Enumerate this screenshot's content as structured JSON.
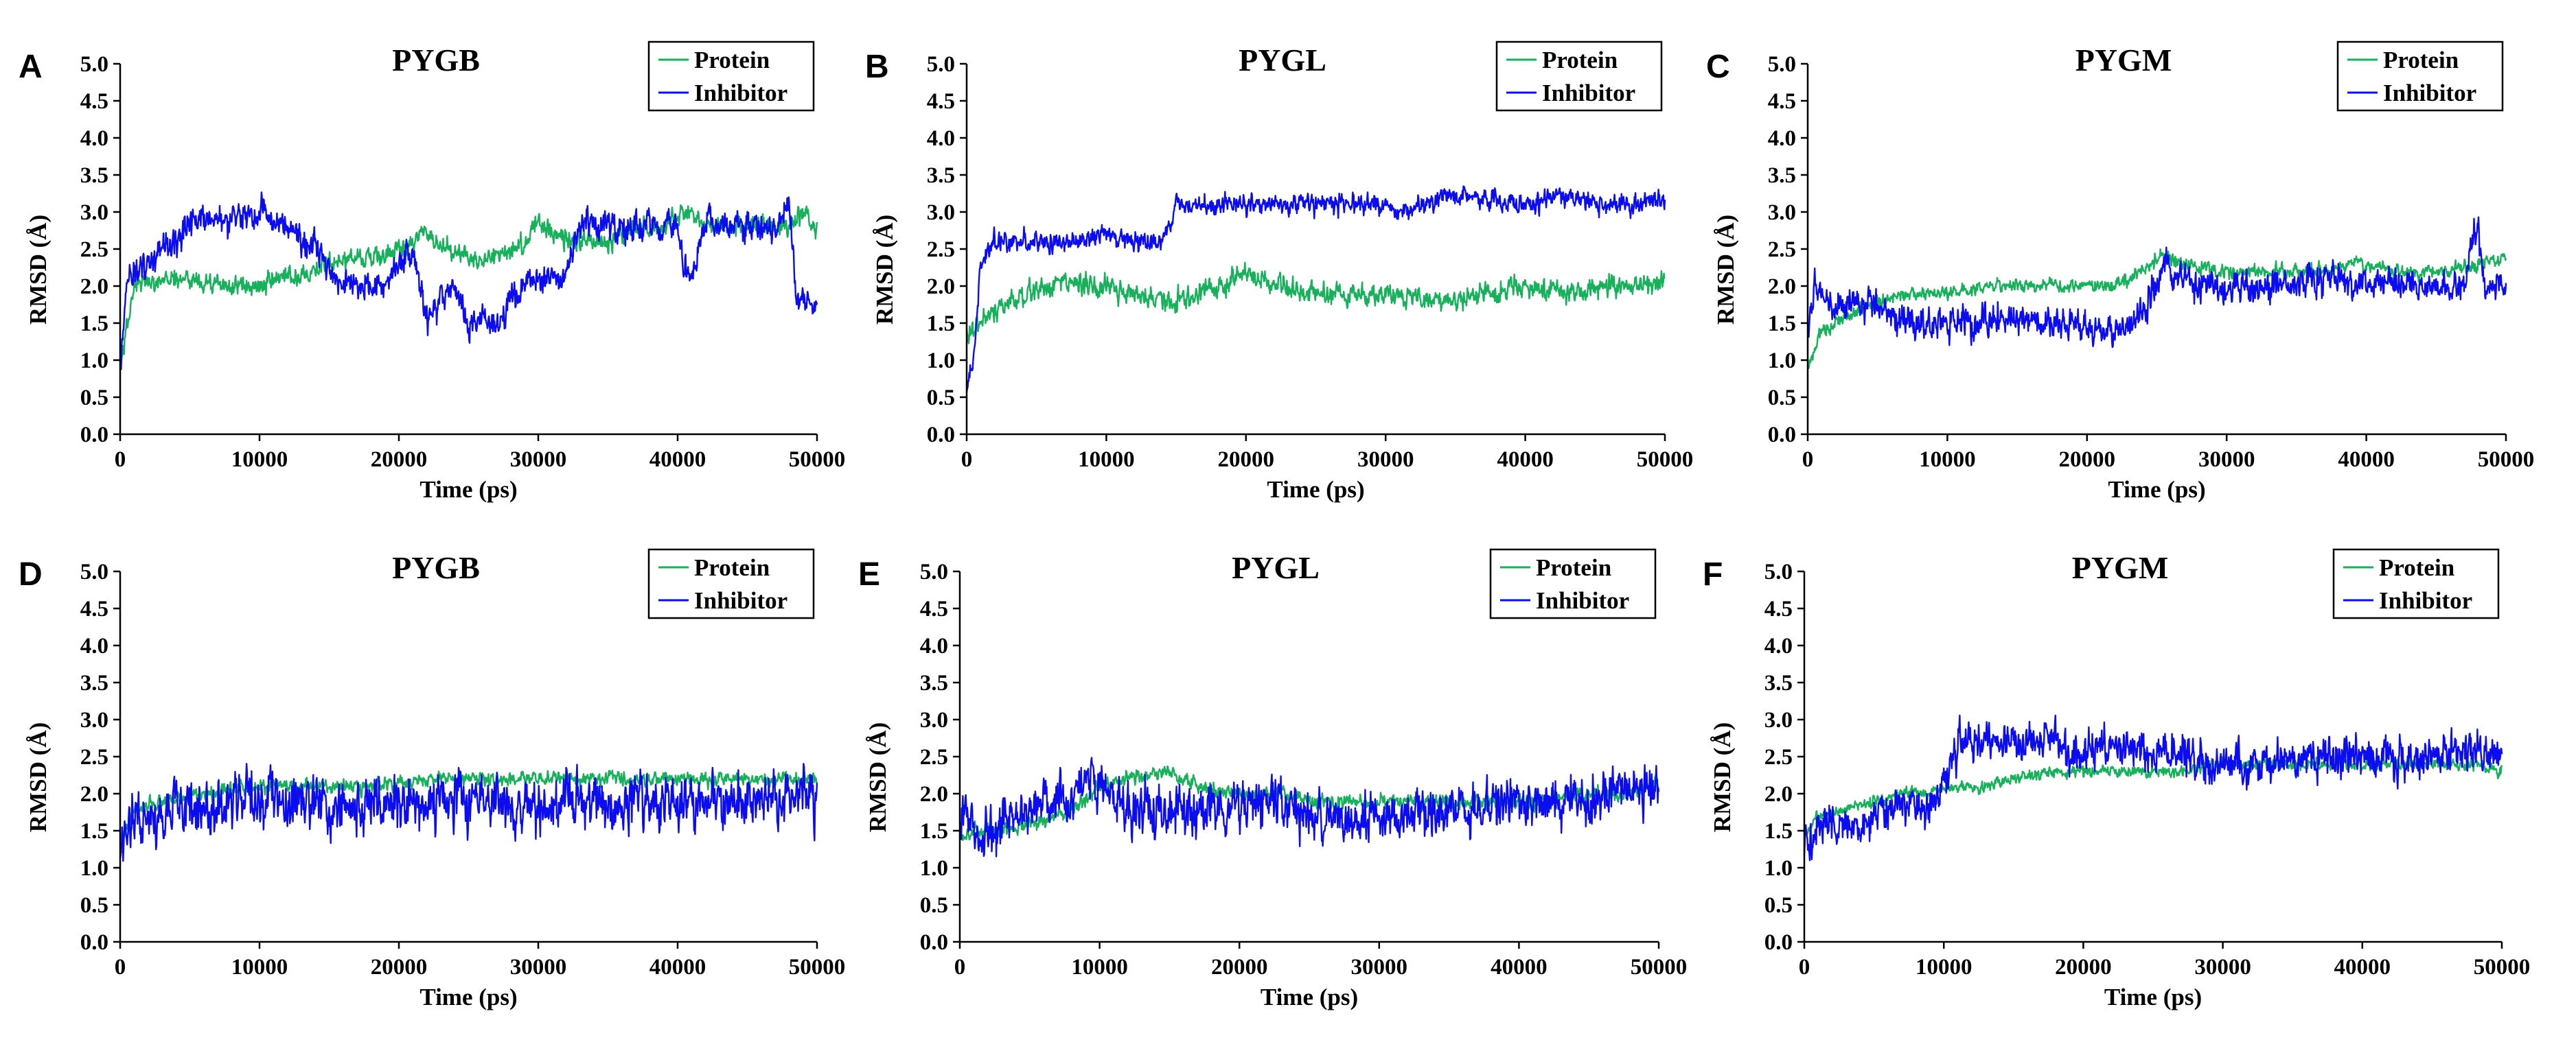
{
  "figure": {
    "colors": {
      "protein": "#19b05c",
      "inhibitor": "#0c0cf0",
      "axis": "#000000"
    }
  },
  "chart_data": [
    {
      "panel": "A",
      "type": "line",
      "title": "PYGB",
      "xlabel": "Time (ps)",
      "ylabel": "RMSD (Å)",
      "xlim": [
        0,
        50000
      ],
      "ylim": [
        0,
        5
      ],
      "xticks": [
        "0",
        "10000",
        "20000",
        "30000",
        "40000",
        "50000"
      ],
      "yticks": [
        "0.0",
        "0.5",
        "1.0",
        "1.5",
        "2.0",
        "2.5",
        "3.0",
        "3.5",
        "4.0",
        "4.5",
        "5.0"
      ],
      "grid": false,
      "legend_position": "top-right",
      "series": [
        {
          "name": "Protein",
          "color": "#19b05c",
          "noise": 0.12,
          "x": [
            0,
            1000,
            3000,
            5000,
            7000,
            8000,
            10000,
            12000,
            15000,
            17000,
            19000,
            21000,
            22000,
            23000,
            25000,
            27000,
            29000,
            30000,
            31000,
            32000,
            33000,
            35000,
            37000,
            39000,
            40000,
            41000,
            42000,
            44000,
            46000,
            48000,
            49000,
            50000
          ],
          "values": [
            0.9,
            2.0,
            2.1,
            2.1,
            2.0,
            2.0,
            2.0,
            2.1,
            2.3,
            2.4,
            2.4,
            2.6,
            2.8,
            2.5,
            2.4,
            2.4,
            2.6,
            2.9,
            2.7,
            2.6,
            2.6,
            2.6,
            2.8,
            2.8,
            2.9,
            3.0,
            2.8,
            2.8,
            2.8,
            2.8,
            3.0,
            2.8
          ]
        },
        {
          "name": "Inhibitor",
          "color": "#0c0cf0",
          "noise": 0.18,
          "x": [
            0,
            500,
            1000,
            2000,
            3000,
            4000,
            5000,
            6000,
            8000,
            10000,
            12000,
            13000,
            14000,
            15000,
            16000,
            17000,
            18000,
            19000,
            20000,
            21000,
            21500,
            22000,
            23000,
            24000,
            25000,
            26000,
            27000,
            28000,
            29000,
            30000,
            31000,
            32000,
            33000,
            34000,
            36000,
            38000,
            39000,
            40000,
            40500,
            41000,
            42000,
            43000,
            44000,
            46000,
            47000,
            48000,
            48500,
            49000,
            50000
          ],
          "values": [
            0.8,
            2.1,
            2.2,
            2.3,
            2.5,
            2.6,
            2.8,
            2.9,
            2.9,
            3.0,
            2.8,
            2.6,
            2.5,
            2.2,
            2.0,
            2.0,
            2.0,
            2.0,
            2.3,
            2.5,
            2.0,
            1.5,
            1.8,
            2.0,
            1.5,
            1.5,
            1.5,
            1.8,
            2.1,
            2.0,
            2.1,
            2.1,
            2.9,
            2.8,
            2.8,
            2.8,
            2.8,
            2.9,
            2.2,
            2.1,
            2.9,
            2.8,
            2.8,
            2.8,
            2.8,
            3.2,
            1.8,
            1.8,
            1.8
          ]
        }
      ]
    },
    {
      "panel": "B",
      "type": "line",
      "title": "PYGL",
      "xlabel": "Time (ps)",
      "ylabel": "RMSD (Å)",
      "xlim": [
        0,
        50000
      ],
      "ylim": [
        0,
        5
      ],
      "xticks": [
        "0",
        "10000",
        "20000",
        "30000",
        "40000",
        "50000"
      ],
      "yticks": [
        "0.0",
        "0.5",
        "1.0",
        "1.5",
        "2.0",
        "2.5",
        "3.0",
        "3.5",
        "4.0",
        "4.5",
        "5.0"
      ],
      "grid": false,
      "legend_position": "top-right",
      "series": [
        {
          "name": "Protein",
          "color": "#19b05c",
          "noise": 0.13,
          "x": [
            0,
            1000,
            3000,
            5000,
            7000,
            9000,
            12000,
            15000,
            18000,
            20000,
            22000,
            25000,
            28000,
            31000,
            34000,
            37000,
            40000,
            43000,
            46000,
            48000,
            50000
          ],
          "values": [
            1.3,
            1.5,
            1.8,
            1.9,
            2.1,
            2.0,
            1.9,
            1.8,
            2.0,
            2.2,
            2.0,
            1.9,
            1.9,
            1.9,
            1.8,
            1.9,
            2.0,
            1.9,
            2.0,
            2.0,
            2.1
          ]
        },
        {
          "name": "Inhibitor",
          "color": "#0c0cf0",
          "noise": 0.12,
          "x": [
            0,
            500,
            1000,
            2000,
            4000,
            6000,
            8000,
            10000,
            12000,
            14000,
            15000,
            17000,
            20000,
            23000,
            26000,
            29000,
            31000,
            34000,
            37000,
            40000,
            43000,
            46000,
            48000,
            50000
          ],
          "values": [
            0.6,
            1.0,
            2.3,
            2.6,
            2.6,
            2.6,
            2.6,
            2.7,
            2.6,
            2.6,
            3.1,
            3.1,
            3.1,
            3.1,
            3.1,
            3.1,
            3.0,
            3.2,
            3.2,
            3.1,
            3.2,
            3.1,
            3.1,
            3.2
          ]
        }
      ]
    },
    {
      "panel": "C",
      "type": "line",
      "title": "PYGM",
      "xlabel": "Time (ps)",
      "ylabel": "RMSD (Å)",
      "xlim": [
        0,
        50000
      ],
      "ylim": [
        0,
        5
      ],
      "xticks": [
        "0",
        "10000",
        "20000",
        "30000",
        "40000",
        "50000"
      ],
      "yticks": [
        "0.0",
        "0.5",
        "1.0",
        "1.5",
        "2.0",
        "2.5",
        "3.0",
        "3.5",
        "4.0",
        "4.5",
        "5.0"
      ],
      "grid": false,
      "legend_position": "top-right",
      "series": [
        {
          "name": "Protein",
          "color": "#19b05c",
          "noise": 0.08,
          "x": [
            0,
            1000,
            3000,
            5000,
            7000,
            10000,
            13000,
            16000,
            19000,
            22000,
            24000,
            25000,
            27000,
            30000,
            33000,
            36000,
            39000,
            42000,
            45000,
            48000,
            50000
          ],
          "values": [
            0.9,
            1.4,
            1.6,
            1.8,
            1.9,
            1.9,
            2.0,
            2.0,
            2.0,
            2.0,
            2.2,
            2.4,
            2.3,
            2.2,
            2.2,
            2.2,
            2.3,
            2.2,
            2.2,
            2.3,
            2.4
          ]
        },
        {
          "name": "Inhibitor",
          "color": "#0c0cf0",
          "noise": 0.18,
          "x": [
            0,
            500,
            1000,
            2000,
            4000,
            6000,
            8000,
            10000,
            12000,
            14000,
            16000,
            18000,
            20000,
            22000,
            24000,
            25000,
            26000,
            28000,
            30000,
            33000,
            36000,
            40000,
            44000,
            47000,
            47500,
            48000,
            48500,
            49000,
            50000
          ],
          "values": [
            1.4,
            2.0,
            1.9,
            1.7,
            1.8,
            1.6,
            1.5,
            1.5,
            1.5,
            1.6,
            1.5,
            1.5,
            1.4,
            1.4,
            1.6,
            2.1,
            2.2,
            2.0,
            2.0,
            2.0,
            2.1,
            2.0,
            2.0,
            2.0,
            2.6,
            2.9,
            2.0,
            2.0,
            2.0
          ]
        }
      ]
    },
    {
      "panel": "D",
      "type": "line",
      "title": "PYGB",
      "xlabel": "Time (ps)",
      "ylabel": "RMSD (Å)",
      "xlim": [
        0,
        50000
      ],
      "ylim": [
        0,
        5
      ],
      "xticks": [
        "0",
        "10000",
        "20000",
        "30000",
        "40000",
        "50000"
      ],
      "yticks": [
        "0.0",
        "0.5",
        "1.0",
        "1.5",
        "2.0",
        "2.5",
        "3.0",
        "3.5",
        "4.0",
        "4.5",
        "5.0"
      ],
      "grid": false,
      "legend_position": "top-right",
      "series": [
        {
          "name": "Protein",
          "color": "#19b05c",
          "noise": 0.08,
          "x": [
            0,
            1000,
            3000,
            6000,
            10000,
            14000,
            18000,
            22000,
            26000,
            30000,
            34000,
            38000,
            42000,
            46000,
            50000
          ],
          "values": [
            1.2,
            1.8,
            1.9,
            2.0,
            2.1,
            2.1,
            2.1,
            2.2,
            2.2,
            2.2,
            2.2,
            2.2,
            2.2,
            2.2,
            2.2
          ]
        },
        {
          "name": "Inhibitor",
          "color": "#0c0cf0",
          "noise": 0.32,
          "x": [
            0,
            1000,
            3000,
            5000,
            8000,
            11000,
            14000,
            15000,
            18000,
            22000,
            26000,
            30000,
            34000,
            38000,
            42000,
            46000,
            50000
          ],
          "values": [
            1.3,
            1.7,
            1.8,
            1.8,
            1.9,
            1.9,
            1.9,
            1.7,
            1.9,
            1.9,
            1.9,
            1.9,
            1.9,
            1.9,
            1.9,
            1.9,
            2.0
          ]
        }
      ]
    },
    {
      "panel": "E",
      "type": "line",
      "title": "PYGL",
      "xlabel": "Time (ps)",
      "ylabel": "RMSD (Å)",
      "xlim": [
        0,
        50000
      ],
      "ylim": [
        0,
        5
      ],
      "xticks": [
        "0",
        "10000",
        "20000",
        "30000",
        "40000",
        "50000"
      ],
      "yticks": [
        "0.0",
        "0.5",
        "1.0",
        "1.5",
        "2.0",
        "2.5",
        "3.0",
        "3.5",
        "4.0",
        "4.5",
        "5.0"
      ],
      "grid": false,
      "legend_position": "top-right",
      "series": [
        {
          "name": "Protein",
          "color": "#19b05c",
          "noise": 0.09,
          "x": [
            0,
            1000,
            3000,
            5000,
            7000,
            9000,
            10000,
            12000,
            15000,
            17000,
            20000,
            23000,
            26000,
            29000,
            32000,
            35000,
            38000,
            41000,
            44000,
            47000,
            50000
          ],
          "values": [
            1.4,
            1.5,
            1.5,
            1.6,
            1.7,
            1.9,
            2.1,
            2.2,
            2.3,
            2.1,
            2.0,
            2.0,
            1.9,
            1.9,
            1.9,
            1.9,
            1.9,
            1.9,
            2.0,
            2.0,
            2.1
          ]
        },
        {
          "name": "Inhibitor",
          "color": "#0c0cf0",
          "noise": 0.3,
          "x": [
            0,
            1000,
            3000,
            5000,
            7000,
            9000,
            10000,
            12000,
            14000,
            16000,
            18000,
            20000,
            22000,
            24000,
            26000,
            28000,
            30000,
            32000,
            34000,
            36000,
            38000,
            40000,
            42000,
            44000,
            46000,
            48000,
            50000
          ],
          "values": [
            1.7,
            1.5,
            1.6,
            1.8,
            1.9,
            2.1,
            2.2,
            1.8,
            1.8,
            1.7,
            1.8,
            1.8,
            1.9,
            1.8,
            1.7,
            1.6,
            1.7,
            1.7,
            1.8,
            1.8,
            1.8,
            1.9,
            1.9,
            1.9,
            2.0,
            2.1,
            2.0
          ]
        }
      ]
    },
    {
      "panel": "F",
      "type": "line",
      "title": "PYGM",
      "xlabel": "Time (ps)",
      "ylabel": "RMSD (Å)",
      "xlim": [
        0,
        50000
      ],
      "ylim": [
        0,
        5
      ],
      "xticks": [
        "0",
        "10000",
        "20000",
        "30000",
        "40000",
        "50000"
      ],
      "yticks": [
        "0.0",
        "0.5",
        "1.0",
        "1.5",
        "2.0",
        "2.5",
        "3.0",
        "3.5",
        "4.0",
        "4.5",
        "5.0"
      ],
      "grid": false,
      "legend_position": "top-right",
      "series": [
        {
          "name": "Protein",
          "color": "#19b05c",
          "noise": 0.07,
          "x": [
            0,
            1000,
            3000,
            5000,
            7000,
            9000,
            11000,
            13000,
            15000,
            18000,
            21000,
            24000,
            27000,
            30000,
            33000,
            36000,
            39000,
            42000,
            45000,
            48000,
            50000
          ],
          "values": [
            1.4,
            1.7,
            1.8,
            1.9,
            2.0,
            2.0,
            2.1,
            2.1,
            2.2,
            2.3,
            2.3,
            2.3,
            2.3,
            2.4,
            2.4,
            2.4,
            2.4,
            2.4,
            2.4,
            2.4,
            2.3
          ]
        },
        {
          "name": "Inhibitor",
          "color": "#0c0cf0",
          "noise": 0.24,
          "x": [
            0,
            1000,
            2000,
            4000,
            6000,
            8000,
            9000,
            10000,
            11000,
            12000,
            14000,
            16000,
            18000,
            19000,
            20000,
            22000,
            24000,
            26000,
            28000,
            30000,
            32000,
            35000,
            38000,
            41000,
            44000,
            47000,
            50000
          ],
          "values": [
            1.3,
            1.5,
            1.6,
            1.5,
            1.8,
            1.9,
            1.8,
            2.2,
            2.6,
            2.7,
            2.7,
            2.7,
            2.7,
            2.6,
            2.6,
            2.6,
            2.6,
            2.6,
            2.5,
            2.4,
            2.4,
            2.5,
            2.5,
            2.5,
            2.5,
            2.6,
            2.6
          ]
        }
      ]
    }
  ]
}
